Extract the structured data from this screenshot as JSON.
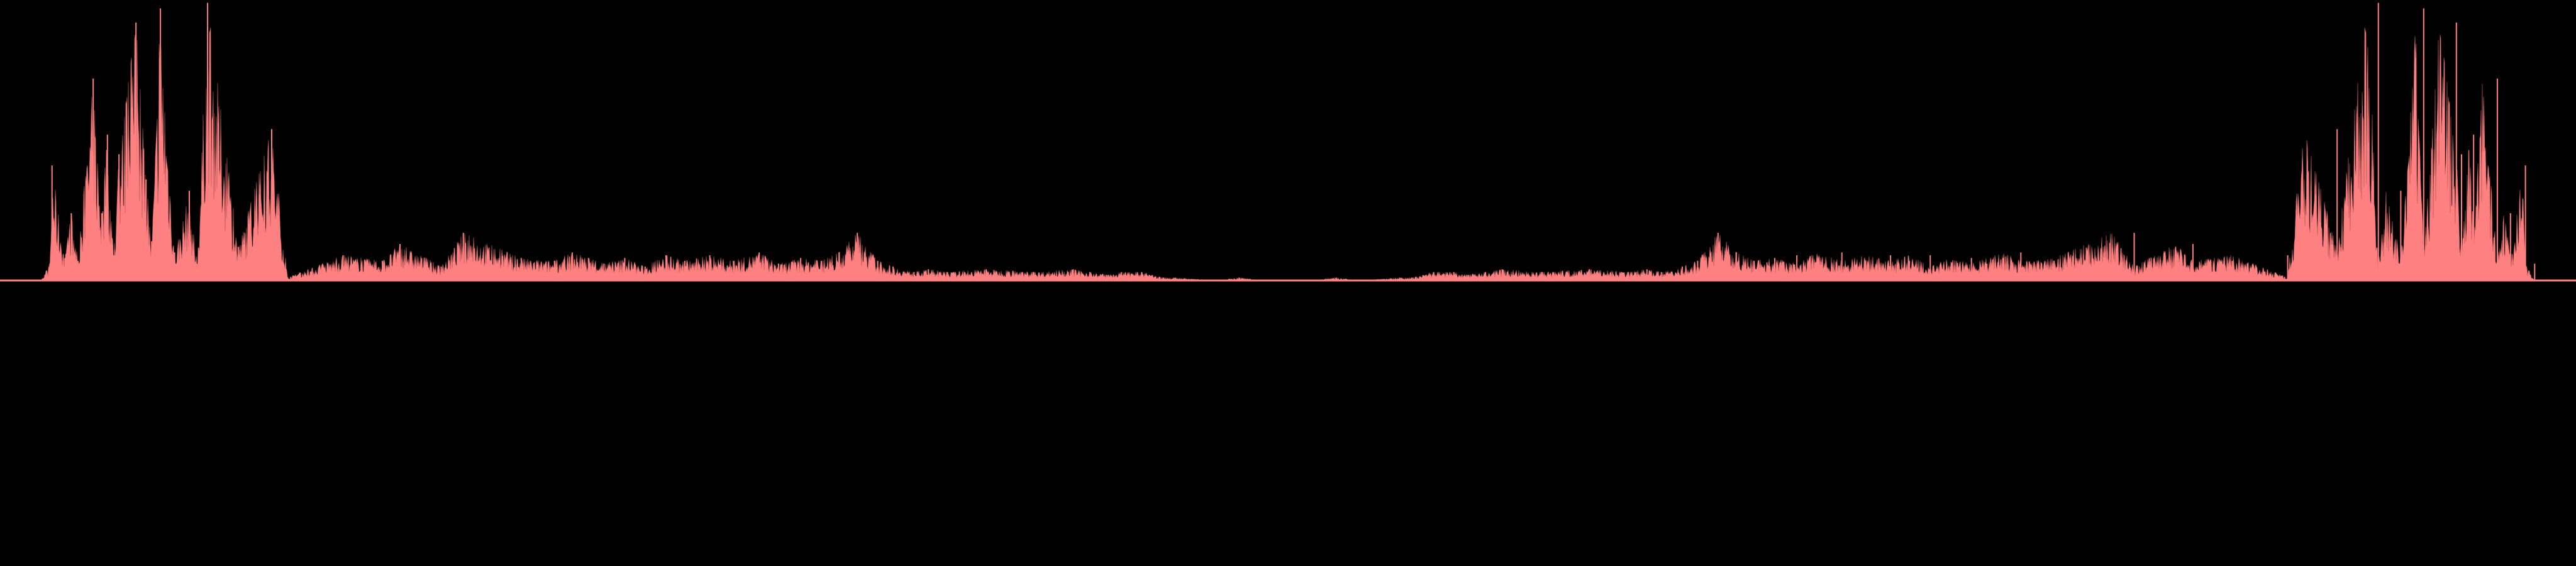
{
  "colors": {
    "background": "#000000",
    "fill": "#ff8080",
    "outline": "#b85a5a"
  },
  "chart_data": {
    "type": "area",
    "orientation": "mirrored-symmetric",
    "title": "",
    "xlabel": "",
    "ylabel": "",
    "grid": false,
    "legend": "none",
    "ylim": [
      0,
      1
    ],
    "series": [
      {
        "x": [
          0.0,
          0.0158,
          0.0194,
          0.0202,
          0.0252,
          0.0277,
          0.0303,
          0.0362,
          0.0395,
          0.0417,
          0.0442,
          0.0462,
          0.0528,
          0.0567,
          0.0589,
          0.0623,
          0.0678,
          0.0735,
          0.0765,
          0.0806,
          0.0925,
          0.1055,
          0.1117,
          0.1332,
          0.1485,
          0.1553,
          0.1713,
          0.1799,
          0.2024,
          0.2153,
          0.2222,
          0.2285,
          0.2345,
          0.2426,
          0.2505,
          0.2586,
          0.2659,
          0.2756,
          0.2848,
          0.2948,
          0.3023,
          0.3109,
          0.3189,
          0.3258,
          0.3329,
          0.3408,
          0.3468,
          0.3549,
          0.3605,
          0.3679,
          0.3829,
          0.4014,
          0.4167,
          0.4232,
          0.4304,
          0.4355,
          0.4433,
          0.4518,
          0.4565,
          0.4722,
          0.4811,
          0.4908,
          0.5,
          0.5092,
          0.5189,
          0.5278,
          0.5435,
          0.5482,
          0.5567,
          0.5645,
          0.5696,
          0.5768,
          0.5833,
          0.5986,
          0.6171,
          0.6321,
          0.6395,
          0.6451,
          0.6532,
          0.6592,
          0.6671,
          0.6742,
          0.6811,
          0.6891,
          0.6977,
          0.7052,
          0.7152,
          0.7244,
          0.7341,
          0.7414,
          0.7495,
          0.7574,
          0.7655,
          0.7715,
          0.7778,
          0.7847,
          0.7976,
          0.8201,
          0.8287,
          0.8447,
          0.8515,
          0.8668,
          0.8883,
          0.8945,
          0.9075,
          0.9194,
          0.9235,
          0.9265,
          0.9322,
          0.9377,
          0.9411,
          0.9433,
          0.9472,
          0.9538,
          0.9558,
          0.9583,
          0.9605,
          0.9638,
          0.9697,
          0.9723,
          0.9748,
          0.9798,
          0.9806,
          0.9842,
          1.0
        ],
        "values": [
          0.0,
          0.0,
          0.06,
          0.41,
          0.08,
          0.24,
          0.07,
          0.72,
          0.24,
          0.52,
          0.09,
          0.45,
          0.92,
          0.36,
          0.14,
          0.97,
          0.1,
          0.32,
          0.06,
          0.99,
          0.12,
          0.54,
          0.01,
          0.09,
          0.07,
          0.13,
          0.05,
          0.17,
          0.08,
          0.07,
          0.1,
          0.08,
          0.06,
          0.08,
          0.05,
          0.09,
          0.07,
          0.09,
          0.07,
          0.1,
          0.06,
          0.08,
          0.07,
          0.1,
          0.17,
          0.07,
          0.05,
          0.03,
          0.04,
          0.03,
          0.04,
          0.03,
          0.04,
          0.03,
          0.02,
          0.03,
          0.03,
          0.01,
          0.01,
          0.0,
          0.01,
          0.0,
          0.0,
          0.0,
          0.01,
          0.0,
          0.01,
          0.01,
          0.03,
          0.03,
          0.02,
          0.03,
          0.04,
          0.03,
          0.04,
          0.03,
          0.04,
          0.03,
          0.05,
          0.07,
          0.17,
          0.1,
          0.07,
          0.08,
          0.09,
          0.06,
          0.1,
          0.07,
          0.09,
          0.07,
          0.09,
          0.05,
          0.08,
          0.06,
          0.08,
          0.1,
          0.07,
          0.08,
          0.17,
          0.05,
          0.13,
          0.07,
          0.09,
          0.01,
          0.54,
          0.12,
          0.99,
          0.06,
          0.32,
          0.1,
          0.97,
          0.14,
          0.36,
          0.92,
          0.45,
          0.09,
          0.52,
          0.24,
          0.72,
          0.07,
          0.24,
          0.08,
          0.41,
          0.06,
          0.0
        ]
      }
    ]
  }
}
